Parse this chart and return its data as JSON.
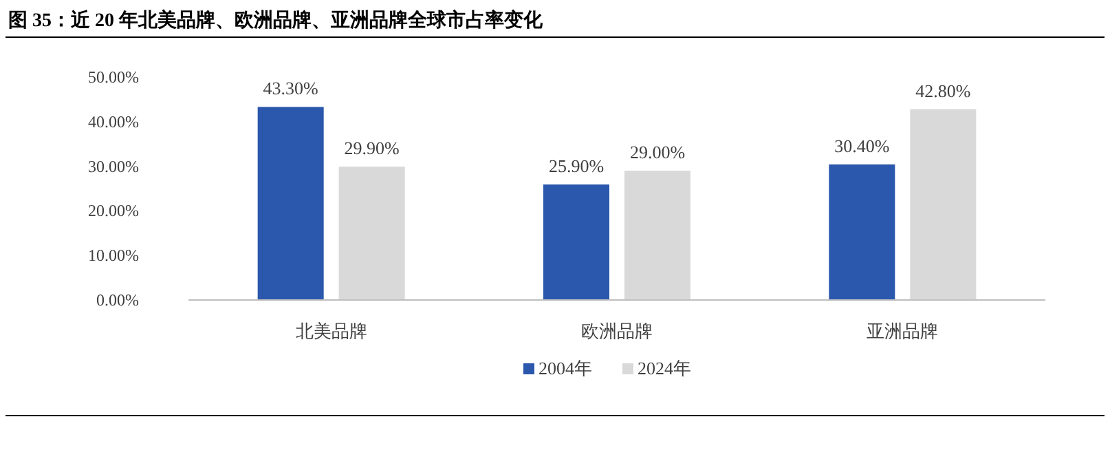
{
  "chart_data": {
    "type": "bar",
    "title": "图 35：近 20 年北美品牌、欧洲品牌、亚洲品牌全球市占率变化",
    "categories": [
      "北美品牌",
      "欧洲品牌",
      "亚洲品牌"
    ],
    "series": [
      {
        "name": "2004年",
        "color": "#2b57ac",
        "values": [
          43.3,
          25.9,
          30.4
        ],
        "value_labels": [
          "43.30%",
          "25.90%",
          "30.40%"
        ]
      },
      {
        "name": "2024年",
        "color": "#d9d9d9",
        "values": [
          29.9,
          29.0,
          42.8
        ],
        "value_labels": [
          "29.90%",
          "29.00%",
          "42.80%"
        ]
      }
    ],
    "ylim": [
      0,
      50
    ],
    "yticks": [
      {
        "value": 0,
        "label": "0.00%"
      },
      {
        "value": 10,
        "label": "10.00%"
      },
      {
        "value": 20,
        "label": "20.00%"
      },
      {
        "value": 30,
        "label": "30.00%"
      },
      {
        "value": 40,
        "label": "40.00%"
      },
      {
        "value": 50,
        "label": "50.00%"
      }
    ],
    "grid": false,
    "legend": "bottom"
  }
}
